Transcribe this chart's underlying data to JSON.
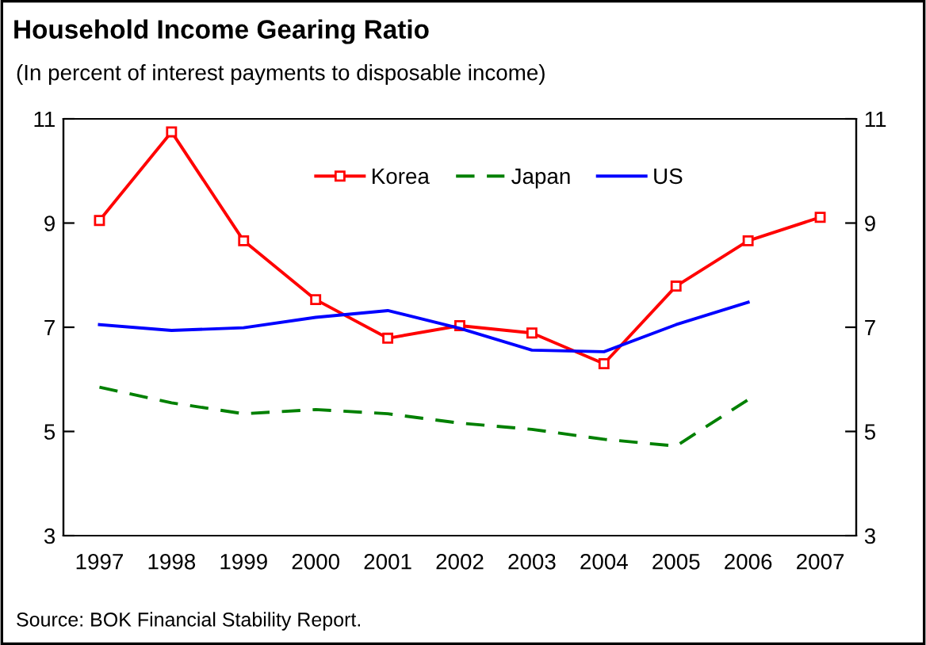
{
  "chart_data": {
    "type": "line",
    "title": "Household Income Gearing Ratio",
    "subtitle": "(In percent of interest payments to disposable income)",
    "annotations": [
      "Source: BOK Financial Stability Report."
    ],
    "categories": [
      "1997",
      "1998",
      "1999",
      "2000",
      "2001",
      "2002",
      "2003",
      "2004",
      "2005",
      "2006",
      "2007"
    ],
    "series": [
      {
        "name": "Korea",
        "color": "#ff0000",
        "marker": "square",
        "line_style": "solid",
        "values": [
          9.05,
          10.75,
          8.66,
          7.53,
          6.79,
          7.03,
          6.89,
          6.3,
          7.79,
          8.66,
          9.11
        ]
      },
      {
        "name": "Japan",
        "color": "#008000",
        "marker": "none",
        "line_style": "dashed",
        "values": [
          5.85,
          5.55,
          5.34,
          5.42,
          5.34,
          5.16,
          5.04,
          4.85,
          4.72,
          5.61,
          null
        ]
      },
      {
        "name": "US",
        "color": "#0000ff",
        "marker": "none",
        "line_style": "solid",
        "values": [
          7.05,
          6.94,
          6.99,
          7.19,
          7.32,
          6.98,
          6.56,
          6.53,
          7.05,
          7.48,
          null
        ]
      }
    ],
    "ylim": [
      3,
      11
    ],
    "yticks": [
      3,
      5,
      7,
      9,
      11
    ],
    "y2lim": [
      3,
      11
    ],
    "y2ticks": [
      3,
      5,
      7,
      9,
      11
    ],
    "grid": false,
    "legend": "top"
  }
}
